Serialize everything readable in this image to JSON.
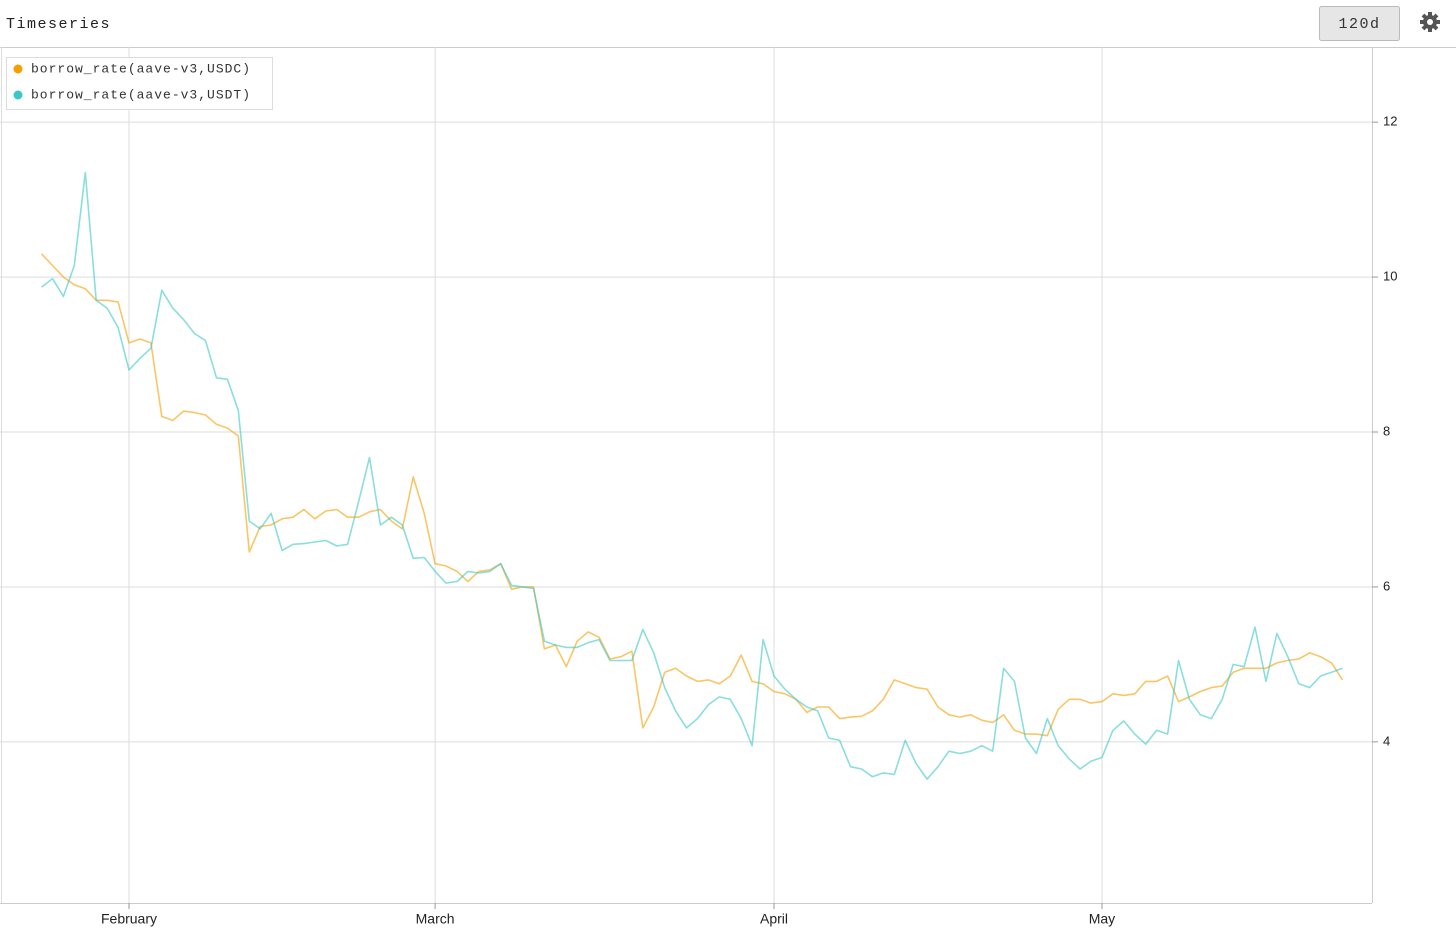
{
  "header": {
    "title": "Timeseries",
    "range_button": "120d"
  },
  "chart_data": {
    "type": "line",
    "xlim": [
      -3.8,
      121.7
    ],
    "xticks": [
      {
        "value": 8,
        "label": "February"
      },
      {
        "value": 36,
        "label": "March"
      },
      {
        "value": 67,
        "label": "April"
      },
      {
        "value": 97,
        "label": "May"
      }
    ],
    "ylim": [
      1.92,
      12.97
    ],
    "yticks": [
      4,
      6,
      8,
      10,
      12
    ],
    "grid": true,
    "legend": "top-left",
    "series": [
      {
        "name": "borrow_rate(aave-v3,USDC)",
        "color": "#f5a000",
        "values": [
          10.3,
          10.15,
          10.0,
          9.9,
          9.85,
          9.7,
          9.7,
          9.68,
          9.15,
          9.2,
          9.15,
          8.2,
          8.15,
          8.27,
          8.25,
          8.22,
          8.1,
          8.05,
          7.95,
          6.45,
          6.78,
          6.8,
          6.88,
          6.9,
          7.0,
          6.88,
          6.98,
          7.0,
          6.9,
          6.9,
          6.97,
          7.0,
          6.85,
          6.75,
          7.42,
          6.95,
          6.3,
          6.27,
          6.2,
          6.07,
          6.2,
          6.22,
          6.3,
          5.97,
          6.0,
          6.0,
          5.2,
          5.25,
          4.97,
          5.3,
          5.42,
          5.35,
          5.07,
          5.1,
          5.17,
          4.18,
          4.45,
          4.9,
          4.95,
          4.85,
          4.78,
          4.8,
          4.75,
          4.85,
          5.12,
          4.78,
          4.75,
          4.65,
          4.62,
          4.55,
          4.38,
          4.45,
          4.45,
          4.3,
          4.32,
          4.33,
          4.4,
          4.55,
          4.8,
          4.75,
          4.7,
          4.68,
          4.45,
          4.35,
          4.32,
          4.35,
          4.28,
          4.25,
          4.35,
          4.15,
          4.1,
          4.1,
          4.08,
          4.42,
          4.55,
          4.55,
          4.5,
          4.52,
          4.62,
          4.6,
          4.62,
          4.78,
          4.78,
          4.85,
          4.52,
          4.58,
          4.65,
          4.7,
          4.72,
          4.9,
          4.95,
          4.95,
          4.95,
          5.02,
          5.05,
          5.07,
          5.15,
          5.1,
          5.02,
          4.8
        ]
      },
      {
        "name": "borrow_rate(aave-v3,USDT)",
        "color": "#3cc8c8",
        "values": [
          9.87,
          9.98,
          9.75,
          10.15,
          11.35,
          9.7,
          9.6,
          9.35,
          8.8,
          8.95,
          9.08,
          9.83,
          9.6,
          9.45,
          9.27,
          9.18,
          8.7,
          8.68,
          8.28,
          6.85,
          6.75,
          6.95,
          6.47,
          6.55,
          6.56,
          6.58,
          6.6,
          6.53,
          6.55,
          7.1,
          7.67,
          6.8,
          6.9,
          6.8,
          6.37,
          6.38,
          6.2,
          6.05,
          6.07,
          6.2,
          6.18,
          6.2,
          6.3,
          6.02,
          6.0,
          5.98,
          5.3,
          5.25,
          5.22,
          5.22,
          5.28,
          5.32,
          5.05,
          5.05,
          5.05,
          5.45,
          5.15,
          4.7,
          4.4,
          4.18,
          4.3,
          4.48,
          4.58,
          4.55,
          4.3,
          3.95,
          5.32,
          4.85,
          4.68,
          4.55,
          4.45,
          4.4,
          4.05,
          4.02,
          3.68,
          3.65,
          3.55,
          3.6,
          3.58,
          4.02,
          3.72,
          3.52,
          3.68,
          3.88,
          3.85,
          3.88,
          3.95,
          3.88,
          4.95,
          4.78,
          4.05,
          3.85,
          4.3,
          3.95,
          3.78,
          3.65,
          3.75,
          3.8,
          4.15,
          4.27,
          4.1,
          3.97,
          4.15,
          4.1,
          5.05,
          4.55,
          4.35,
          4.3,
          4.55,
          5.0,
          4.97,
          5.48,
          4.78,
          5.4,
          5.1,
          4.75,
          4.7,
          4.85,
          4.9,
          4.95
        ]
      }
    ]
  }
}
